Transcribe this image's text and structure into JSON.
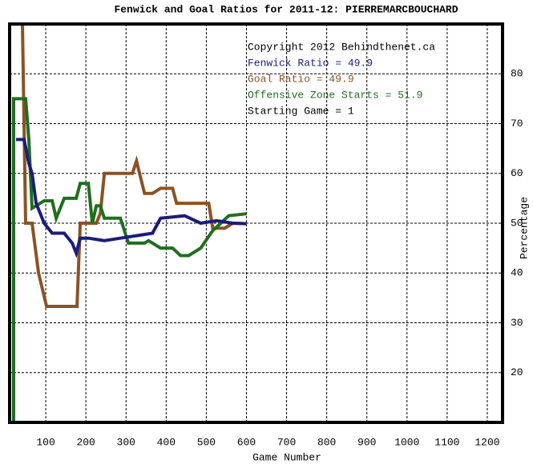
{
  "chart_data": {
    "type": "line",
    "title": "Fenwick and Goal Ratios for 2011-12: PIERREMARCBOUCHARD",
    "x_label": "Game Number",
    "y_label": "Percentage",
    "xlim": [
      10,
      1238
    ],
    "ylim": [
      10,
      90
    ],
    "xticks": [
      100,
      200,
      300,
      400,
      500,
      600,
      700,
      800,
      900,
      1000,
      1100,
      1200
    ],
    "yticks": [
      20,
      30,
      40,
      50,
      60,
      70,
      80
    ],
    "grid": true,
    "annotations": [
      {
        "text": "Copyright 2012 Behindthenet.ca",
        "color": "#000000"
      },
      {
        "text": "Fenwick Ratio = 49.9",
        "color": "#1c1c7a"
      },
      {
        "text": "Goal Ratio = 49.9",
        "color": "#8b5224"
      },
      {
        "text": "Offensive Zone Starts = 51.9",
        "color": "#1f6e1f"
      },
      {
        "text": "Starting Game = 1",
        "color": "#000000"
      }
    ],
    "series": [
      {
        "color": "#8b5224",
        "x": [
          42,
          50,
          66,
          82,
          102,
          178,
          186,
          226,
          236,
          246,
          316,
          326,
          346,
          366,
          386,
          416,
          426,
          506,
          516,
          546,
          566,
          600
        ],
        "values": [
          90,
          50,
          50,
          40,
          33.3,
          33.3,
          50,
          50,
          52,
          60,
          60,
          62.5,
          56,
          56,
          57,
          57,
          54,
          54,
          49,
          49,
          50,
          49.9
        ]
      },
      {
        "color": "#1f6e1f",
        "x": [
          20,
          20,
          50,
          58,
          66,
          96,
          116,
          126,
          146,
          176,
          186,
          206,
          216,
          226,
          236,
          246,
          286,
          306,
          346,
          356,
          386,
          416,
          436,
          456,
          486,
          516,
          536,
          556,
          600
        ],
        "values": [
          10,
          75,
          75,
          66.8,
          53,
          54.5,
          54.5,
          51,
          55,
          55,
          58,
          58,
          50,
          53.5,
          53.5,
          51,
          51,
          46,
          46,
          46.5,
          45,
          45,
          43.5,
          43.5,
          45,
          48.5,
          50,
          51.5,
          51.9
        ]
      },
      {
        "color": "#1c1c7a",
        "x": [
          26,
          46,
          58,
          66,
          76,
          96,
          116,
          146,
          166,
          176,
          186,
          206,
          246,
          286,
          326,
          366,
          386,
          446,
          486,
          526,
          566,
          600
        ],
        "values": [
          66.8,
          66.8,
          62,
          60,
          54,
          50,
          48,
          48,
          46,
          44,
          47,
          47,
          46.5,
          47,
          47.5,
          48,
          51,
          51.5,
          50,
          50.5,
          50,
          49.9
        ]
      }
    ]
  }
}
